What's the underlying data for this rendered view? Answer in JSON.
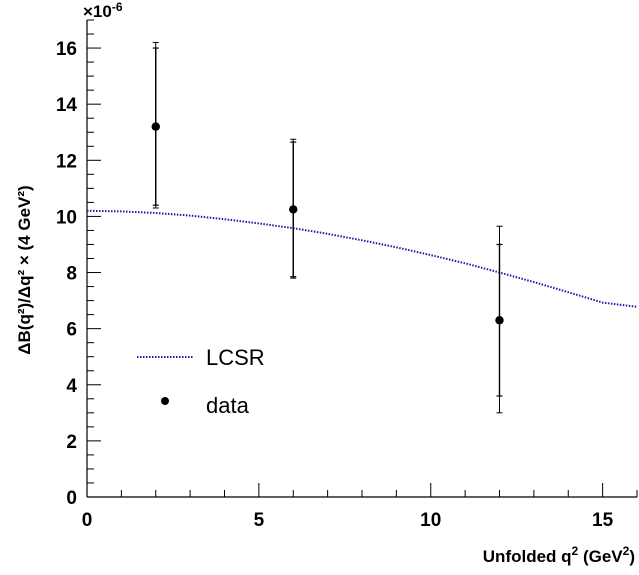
{
  "chart_data": {
    "type": "scatter",
    "xlabel_main": "Unfolded q",
    "xlabel_sup": "2",
    "xlabel_tail": " (GeV",
    "xlabel_sup2": "2",
    "xlabel_end": ")",
    "ylabel": "ΔB(q²)/Δq² × (4 GeV²)",
    "y_multiplier_base": "×10",
    "y_multiplier_exp": "-6",
    "xlim": [
      0,
      16
    ],
    "ylim": [
      0,
      17
    ],
    "x_ticks": [
      0,
      5,
      10,
      15
    ],
    "y_ticks": [
      0,
      2,
      4,
      6,
      8,
      10,
      12,
      14,
      16
    ],
    "grid": false,
    "legend_position": "bottom-left",
    "series": [
      {
        "name": "LCSR",
        "kind": "line",
        "style": "dotted",
        "color": "#1a1aa8",
        "points": [
          [
            0,
            10.2
          ],
          [
            1,
            10.18
          ],
          [
            2,
            10.12
          ],
          [
            3,
            10.03
          ],
          [
            4,
            9.9
          ],
          [
            5,
            9.75
          ],
          [
            6,
            9.58
          ],
          [
            7,
            9.38
          ],
          [
            8,
            9.15
          ],
          [
            9,
            8.9
          ],
          [
            10,
            8.62
          ],
          [
            11,
            8.33
          ],
          [
            12,
            8.0
          ],
          [
            13,
            7.66
          ],
          [
            14,
            7.3
          ],
          [
            15,
            6.93
          ],
          [
            16,
            6.78
          ]
        ]
      },
      {
        "name": "data",
        "kind": "points",
        "color": "#000000",
        "points": [
          {
            "x": 2,
            "y": 13.2,
            "err_inner": [
              10.4,
              16.0
            ],
            "err_outer": [
              10.3,
              16.2
            ]
          },
          {
            "x": 6,
            "y": 10.25,
            "err_inner": [
              7.85,
              12.65
            ],
            "err_outer": [
              7.8,
              12.75
            ]
          },
          {
            "x": 12,
            "y": 6.3,
            "err_inner": [
              3.6,
              9.0
            ],
            "err_outer": [
              3.0,
              9.65
            ]
          }
        ]
      }
    ]
  }
}
